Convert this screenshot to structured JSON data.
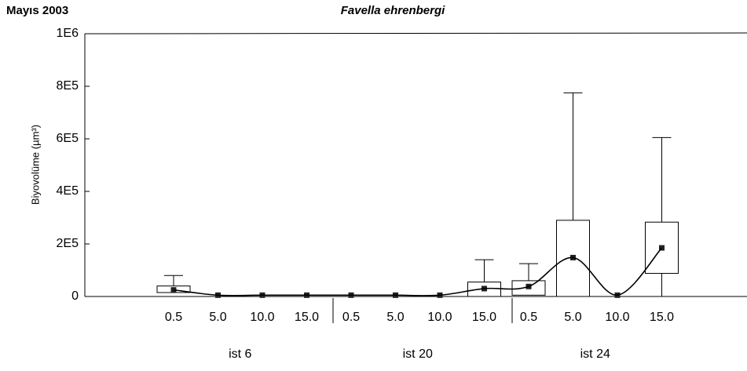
{
  "chart_data": {
    "type": "box",
    "label": "Mayıs 2003",
    "title": "Favella ehrenbergi",
    "ylabel": "Biyovolüme (µm³)",
    "categories": [
      "0.5",
      "5.0",
      "10.0",
      "15.0",
      "0.5",
      "5.0",
      "10.0",
      "15.0",
      "0.5",
      "5.0",
      "10.0",
      "15.0"
    ],
    "groups": [
      "ist 6",
      "ist 20",
      "ist 24"
    ],
    "whisker_low": [
      15000,
      0,
      0,
      0,
      0,
      0,
      0,
      0,
      5000,
      0,
      0,
      0
    ],
    "box_low": [
      15000,
      0,
      0,
      0,
      0,
      0,
      0,
      0,
      5000,
      0,
      0,
      88000
    ],
    "box_high": [
      40000,
      0,
      0,
      0,
      0,
      0,
      0,
      55000,
      60000,
      290000,
      0,
      283000
    ],
    "whisker_high": [
      80000,
      0,
      0,
      0,
      0,
      0,
      0,
      140000,
      125000,
      775000,
      0,
      605000
    ],
    "marker": [
      25000,
      5000,
      5000,
      5000,
      5000,
      5000,
      5000,
      30000,
      38000,
      148000,
      5000,
      185000
    ],
    "color": "#000000",
    "ylim": [
      0,
      1000000
    ],
    "yticks": [
      0,
      {
        "value": 200000,
        "label": "2E5"
      },
      {
        "value": 400000,
        "label": "4E5"
      },
      {
        "value": 600000,
        "label": "6E5"
      },
      {
        "value": 800000,
        "label": "8E5"
      },
      {
        "value": 1000000,
        "label": "1E6"
      }
    ]
  }
}
